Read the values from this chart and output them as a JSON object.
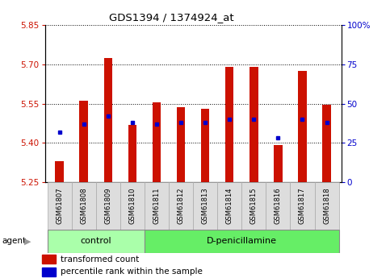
{
  "title": "GDS1394 / 1374924_at",
  "samples": [
    "GSM61807",
    "GSM61808",
    "GSM61809",
    "GSM61810",
    "GSM61811",
    "GSM61812",
    "GSM61813",
    "GSM61814",
    "GSM61815",
    "GSM61816",
    "GSM61817",
    "GSM61818"
  ],
  "transformed_count": [
    5.33,
    5.56,
    5.725,
    5.47,
    5.555,
    5.535,
    5.53,
    5.69,
    5.69,
    5.39,
    5.675,
    5.545
  ],
  "percentile_rank": [
    32,
    37,
    42,
    38,
    37,
    38,
    38,
    40,
    40,
    28,
    40,
    38
  ],
  "ylim_left": [
    5.25,
    5.85
  ],
  "ylim_right": [
    0,
    100
  ],
  "yticks_left": [
    5.25,
    5.4,
    5.55,
    5.7,
    5.85
  ],
  "yticks_right": [
    0,
    25,
    50,
    75,
    100
  ],
  "bar_color": "#CC1100",
  "dot_color": "#0000CC",
  "control_group_indices": [
    0,
    1,
    2,
    3
  ],
  "treatment_group_indices": [
    4,
    5,
    6,
    7,
    8,
    9,
    10,
    11
  ],
  "control_label": "control",
  "treatment_label": "D-penicillamine",
  "agent_label": "agent",
  "legend_red": "transformed count",
  "legend_blue": "percentile rank within the sample",
  "bar_bottom": 5.25,
  "control_facecolor": "#AAFFAA",
  "treatment_facecolor": "#66EE66",
  "sample_box_facecolor": "#DDDDDD",
  "sample_box_edgecolor": "#AAAAAA"
}
